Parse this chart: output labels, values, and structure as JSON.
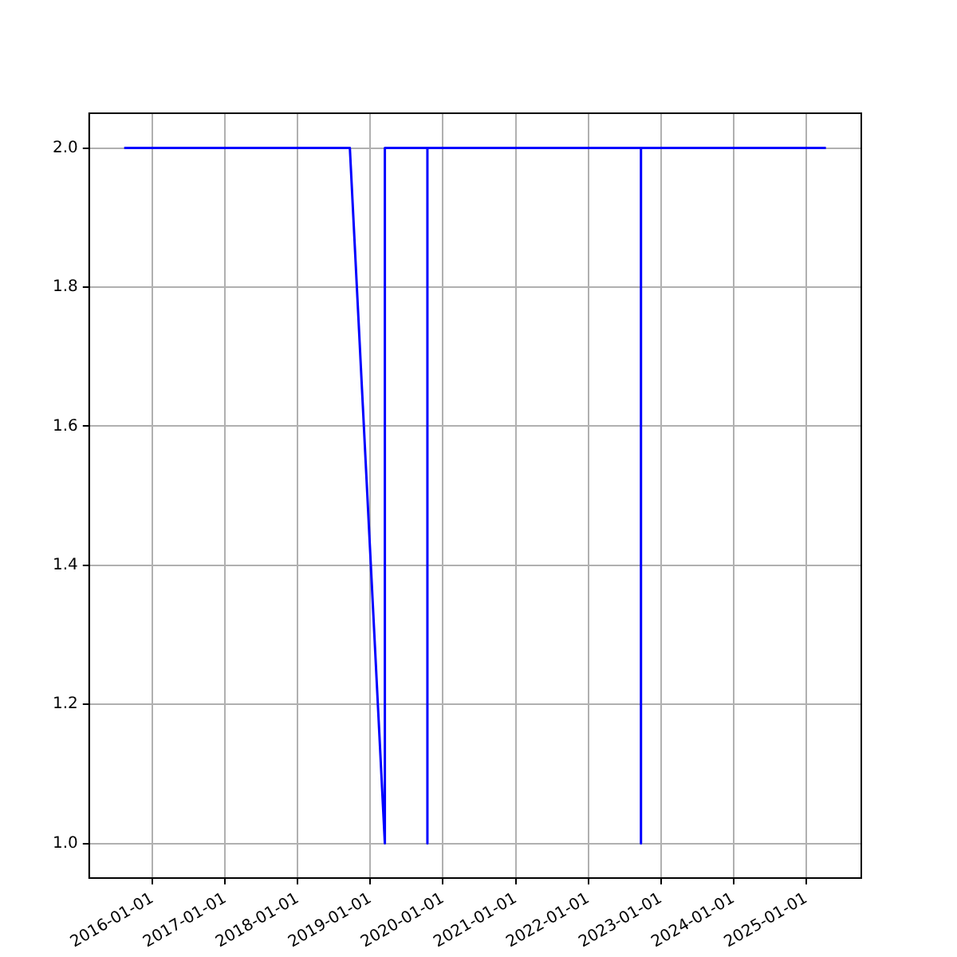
{
  "chart_data": {
    "type": "line",
    "x": [
      "2015-08-12",
      "2018-09-20",
      "2019-03-15",
      "2019-03-15",
      "2019-10-15",
      "2019-10-15",
      "2019-10-15",
      "2022-09-23",
      "2022-09-23",
      "2022-09-23",
      "2025-04-10"
    ],
    "series": [
      {
        "color": "#0000ff",
        "values": [
          2,
          2,
          1,
          2,
          2,
          1,
          2,
          2,
          1,
          2,
          2
        ]
      }
    ],
    "xlim": [
      "2015-02-17",
      "2025-10-05"
    ],
    "xticks": [
      "2016-01-01",
      "2017-01-01",
      "2018-01-01",
      "2019-01-01",
      "2020-01-01",
      "2021-01-01",
      "2022-01-01",
      "2023-01-01",
      "2024-01-01",
      "2025-01-01"
    ],
    "ylim": [
      0.95,
      2.05
    ],
    "yticks": [
      {
        "value": 1,
        "label": "1.0"
      },
      {
        "value": 1.2,
        "label": "1.2"
      },
      {
        "value": 1.4,
        "label": "1.4"
      },
      {
        "value": 1.6,
        "label": "1.6"
      },
      {
        "value": 1.8,
        "label": "1.8"
      },
      {
        "value": 2,
        "label": "2.0"
      }
    ],
    "grid": true,
    "legend": false,
    "marker": "none",
    "line_style": "solid"
  }
}
